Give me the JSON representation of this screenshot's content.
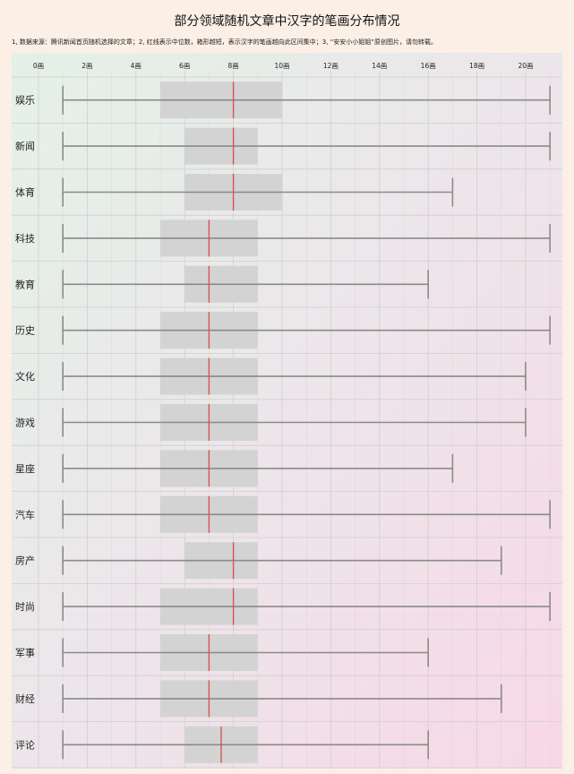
{
  "title": "部分领域随机文章中汉字的笔画分布情况",
  "note": "1, 数据来源：腾讯新闻首页随机选择的文章；2, 红线表示中位数，箱形越短，表示汉字的笔画越向此区间集中；3, “安安小小姐姐”原创图片，请勿转载。",
  "colors": {
    "background": "#fbefe6",
    "box": "#d3d3d3",
    "whisker": "#8a8a8a",
    "median": "#d9534f",
    "grid": "#cfcfcf"
  },
  "chart_data": {
    "type": "boxplot",
    "orientation": "horizontal",
    "xlim": [
      -1,
      21.5
    ],
    "x_ticks": [
      0,
      2,
      4,
      6,
      8,
      10,
      12,
      14,
      16,
      18,
      20
    ],
    "x_tick_labels": [
      "0画",
      "2画",
      "4画",
      "6画",
      "8画",
      "10画",
      "12画",
      "14画",
      "16画",
      "18画",
      "20画"
    ],
    "grid": true,
    "categories": [
      "娱乐",
      "新闻",
      "体育",
      "科技",
      "教育",
      "历史",
      "文化",
      "游戏",
      "星座",
      "汽车",
      "房产",
      "时尚",
      "军事",
      "财经",
      "评论"
    ],
    "series": [
      {
        "category": "娱乐",
        "min": 1,
        "q1": 5,
        "median": 8,
        "q3": 10,
        "max": 21
      },
      {
        "category": "新闻",
        "min": 1,
        "q1": 6,
        "median": 8,
        "q3": 9,
        "max": 21
      },
      {
        "category": "体育",
        "min": 1,
        "q1": 6,
        "median": 8,
        "q3": 10,
        "max": 17
      },
      {
        "category": "科技",
        "min": 1,
        "q1": 5,
        "median": 7,
        "q3": 9,
        "max": 21
      },
      {
        "category": "教育",
        "min": 1,
        "q1": 6,
        "median": 7,
        "q3": 9,
        "max": 16
      },
      {
        "category": "历史",
        "min": 1,
        "q1": 5,
        "median": 7,
        "q3": 9,
        "max": 21
      },
      {
        "category": "文化",
        "min": 1,
        "q1": 5,
        "median": 7,
        "q3": 9,
        "max": 20
      },
      {
        "category": "游戏",
        "min": 1,
        "q1": 5,
        "median": 7,
        "q3": 9,
        "max": 20
      },
      {
        "category": "星座",
        "min": 1,
        "q1": 5,
        "median": 7,
        "q3": 9,
        "max": 17
      },
      {
        "category": "汽车",
        "min": 1,
        "q1": 5,
        "median": 7,
        "q3": 9,
        "max": 21
      },
      {
        "category": "房产",
        "min": 1,
        "q1": 6,
        "median": 8,
        "q3": 9,
        "max": 19
      },
      {
        "category": "时尚",
        "min": 1,
        "q1": 5,
        "median": 8,
        "q3": 9,
        "max": 21
      },
      {
        "category": "军事",
        "min": 1,
        "q1": 5,
        "median": 7,
        "q3": 9,
        "max": 16
      },
      {
        "category": "财经",
        "min": 1,
        "q1": 5,
        "median": 7,
        "q3": 9,
        "max": 19
      },
      {
        "category": "评论",
        "min": 1,
        "q1": 6,
        "median": 7.5,
        "q3": 9,
        "max": 16
      }
    ]
  }
}
